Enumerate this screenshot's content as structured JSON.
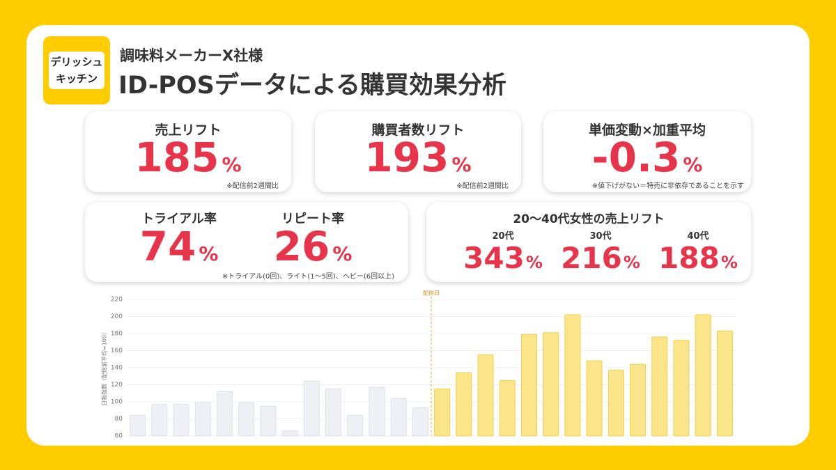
{
  "header": {
    "logo": [
      "デリッシュ",
      "キッチン"
    ],
    "subtitle": "調味料メーカーX社様",
    "title": "ID-POSデータによる購買効果分析"
  },
  "kpis": [
    {
      "label": "売上リフト",
      "value": 185,
      "unit": "%",
      "note": "※配信前2週間比"
    },
    {
      "label": "購買者数リフト",
      "value": 193,
      "unit": "%",
      "note": "※配信前2週間比"
    },
    {
      "label": "単価変動×加重平均",
      "value": -0.3,
      "unit": "%",
      "note": "※値下げがない＝特売に非依存であることを示す"
    }
  ],
  "rates": {
    "items": [
      {
        "label": "トライアル率",
        "value": 74,
        "unit": "%"
      },
      {
        "label": "リピート率",
        "value": 26,
        "unit": "%"
      }
    ],
    "note": "※トライアル(0回)、ライト(1〜5回)、ヘビー(6回以上)"
  },
  "segments": {
    "title": "20〜40代女性の売上リフト",
    "items": [
      {
        "label": "20代",
        "value": 343,
        "unit": "%"
      },
      {
        "label": "30代",
        "value": 216,
        "unit": "%"
      },
      {
        "label": "40代",
        "value": 188,
        "unit": "%"
      }
    ]
  },
  "chart_data": {
    "type": "bar",
    "y_label": "日販指数（配信前平均=100）",
    "categories": [
      null,
      null,
      null,
      null,
      null,
      null,
      null,
      null,
      null,
      null,
      null,
      null,
      null,
      null,
      null,
      null,
      null,
      null,
      null,
      null,
      null,
      null,
      null,
      null,
      null,
      null,
      null,
      null
    ],
    "values": [
      84,
      97,
      97,
      99,
      112,
      99,
      95,
      66,
      124,
      115,
      84,
      117,
      104,
      93,
      115,
      134,
      155,
      125,
      179,
      181,
      202,
      148,
      137,
      144,
      176,
      172,
      202,
      183
    ],
    "bar_colors": [
      "#eef0f6",
      "#eef0f6",
      "#eef0f6",
      "#eef0f6",
      "#eef0f6",
      "#eef0f6",
      "#eef0f6",
      "#eef0f6",
      "#eef0f6",
      "#eef0f6",
      "#eef0f6",
      "#eef0f6",
      "#eef0f6",
      "#eef0f6",
      "#fbe58a",
      "#fbe58a",
      "#fbe58a",
      "#fbe58a",
      "#fbe58a",
      "#fbe58a",
      "#fbe58a",
      "#fbe58a",
      "#fbe58a",
      "#fbe58a",
      "#fbe58a",
      "#fbe58a",
      "#fbe58a",
      "#fbe58a"
    ],
    "annotation": {
      "text": "配信日",
      "x_index": 14
    },
    "ylim": [
      60,
      220
    ],
    "yticks": [
      60,
      80,
      100,
      120,
      140,
      160,
      180,
      200,
      220
    ],
    "grid": true
  }
}
